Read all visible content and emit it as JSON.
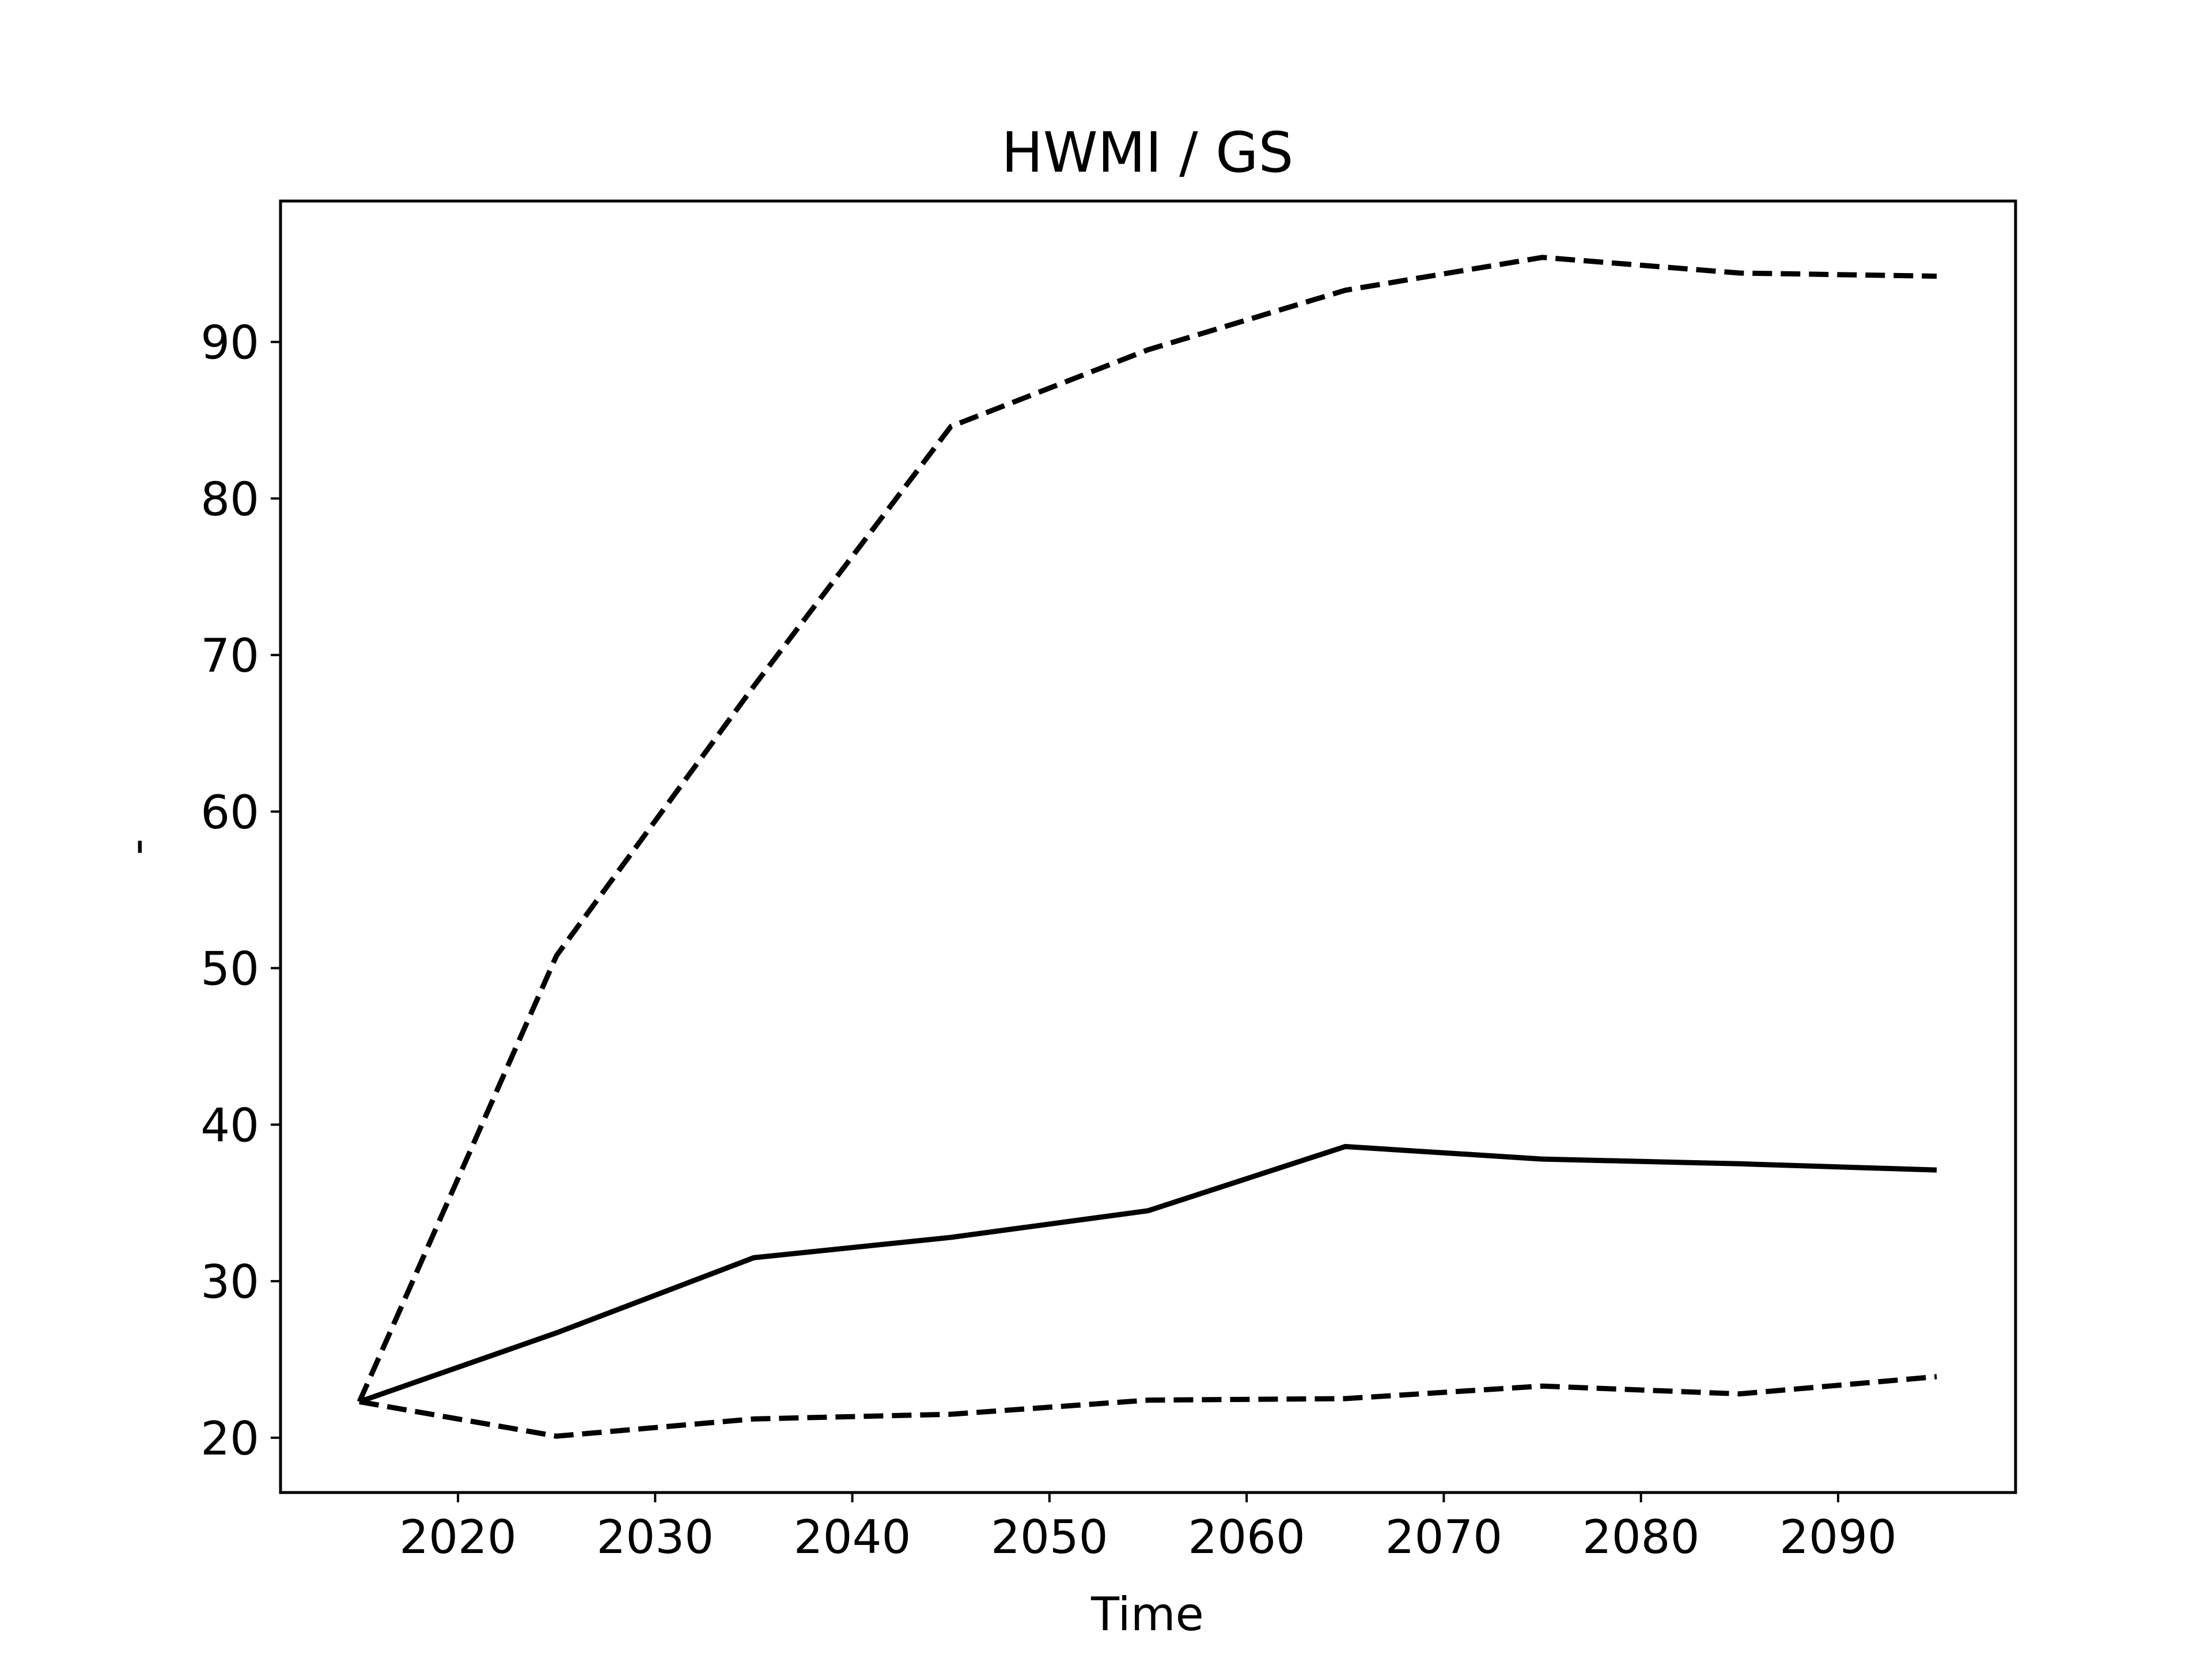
{
  "chart_data": {
    "type": "line",
    "title": "HWMI / GS",
    "xlabel": "Time",
    "ylabel": "-",
    "xlim": [
      2011,
      2099
    ],
    "ylim": [
      16.5,
      99
    ],
    "xticks": [
      "2020",
      "2030",
      "2040",
      "2050",
      "2060",
      "2070",
      "2080",
      "2090"
    ],
    "yticks": [
      "20",
      "30",
      "40",
      "50",
      "60",
      "70",
      "80",
      "90"
    ],
    "x": [
      2015,
      2025,
      2035,
      2045,
      2055,
      2065,
      2075,
      2085,
      2095
    ],
    "grid": false,
    "legend": "none",
    "series": [
      {
        "values": [
          22.3,
          26.7,
          31.5,
          32.8,
          34.5,
          38.6,
          37.8,
          37.5,
          37.1
        ],
        "line_style": "solid",
        "color": "#000000"
      },
      {
        "values": [
          22.3,
          50.8,
          68.0,
          84.6,
          89.5,
          93.3,
          95.4,
          94.4,
          94.2
        ],
        "line_style": "dashed",
        "color": "#000000"
      },
      {
        "values": [
          22.3,
          20.1,
          21.2,
          21.5,
          22.4,
          22.5,
          23.3,
          22.8,
          23.9
        ],
        "line_style": "dashed",
        "color": "#000000"
      }
    ]
  }
}
